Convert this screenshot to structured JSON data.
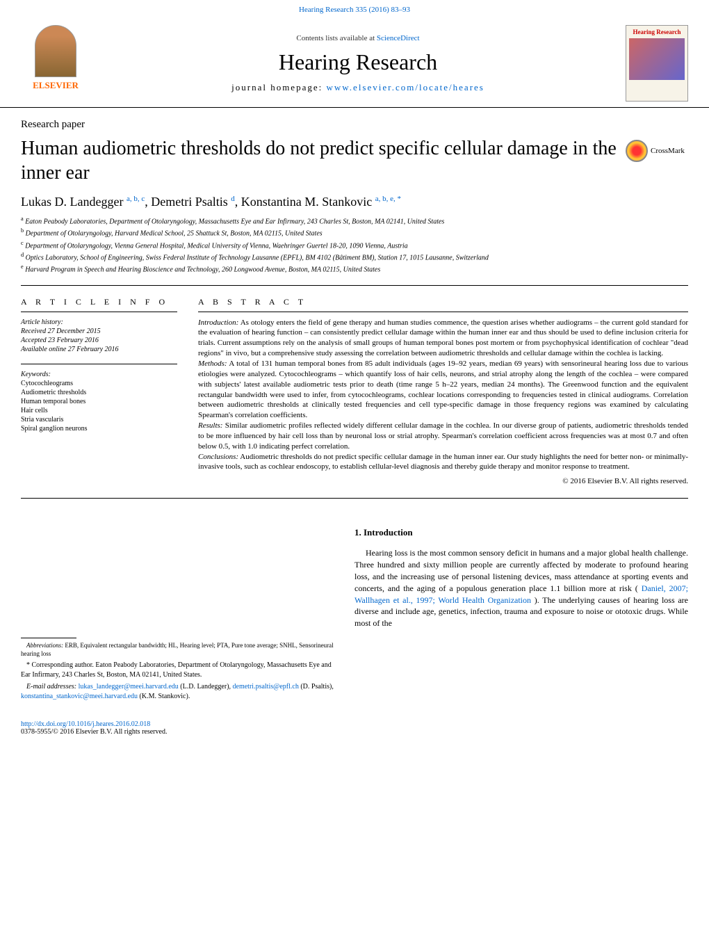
{
  "header": {
    "citation": "Hearing Research 335 (2016) 83–93",
    "contents_prefix": "Contents lists available at ",
    "contents_link": "ScienceDirect",
    "journal_name": "Hearing Research",
    "homepage_prefix": "journal homepage: ",
    "homepage_url": "www.elsevier.com/locate/heares",
    "publisher_name": "ELSEVIER",
    "cover_label": "Hearing Research"
  },
  "article": {
    "type": "Research paper",
    "title": "Human audiometric thresholds do not predict specific cellular damage in the inner ear",
    "crossmark_label": "CrossMark",
    "authors_html": "Lukas D. Landegger ",
    "authors": [
      {
        "name": "Lukas D. Landegger ",
        "sup": "a, b, c"
      },
      {
        "name": ", Demetri Psaltis ",
        "sup": "d"
      },
      {
        "name": ", Konstantina M. Stankovic ",
        "sup": "a, b, e, *"
      }
    ],
    "affiliations": [
      {
        "sup": "a",
        "text": " Eaton Peabody Laboratories, Department of Otolaryngology, Massachusetts Eye and Ear Infirmary, 243 Charles St, Boston, MA 02141, United States"
      },
      {
        "sup": "b",
        "text": " Department of Otolaryngology, Harvard Medical School, 25 Shattuck St, Boston, MA 02115, United States"
      },
      {
        "sup": "c",
        "text": " Department of Otolaryngology, Vienna General Hospital, Medical University of Vienna, Waehringer Guertel 18-20, 1090 Vienna, Austria"
      },
      {
        "sup": "d",
        "text": " Optics Laboratory, School of Engineering, Swiss Federal Institute of Technology Lausanne (EPFL), BM 4102 (Bâtiment BM), Station 17, 1015 Lausanne, Switzerland"
      },
      {
        "sup": "e",
        "text": " Harvard Program in Speech and Hearing Bioscience and Technology, 260 Longwood Avenue, Boston, MA 02115, United States"
      }
    ]
  },
  "info": {
    "heading": "A R T I C L E   I N F O",
    "history_label": "Article history:",
    "history": {
      "received": "Received 27 December 2015",
      "accepted": "Accepted 23 February 2016",
      "online": "Available online 27 February 2016"
    },
    "keywords_label": "Keywords:",
    "keywords": [
      "Cytocochleograms",
      "Audiometric thresholds",
      "Human temporal bones",
      "Hair cells",
      "Stria vascularis",
      "Spiral ganglion neurons"
    ]
  },
  "abstract": {
    "heading": "A B S T R A C T",
    "intro_label": "Introduction:",
    "intro": " As otology enters the field of gene therapy and human studies commence, the question arises whether audiograms – the current gold standard for the evaluation of hearing function – can consistently predict cellular damage within the human inner ear and thus should be used to define inclusion criteria for trials. Current assumptions rely on the analysis of small groups of human temporal bones post mortem or from psychophysical identification of cochlear \"dead regions\" in vivo, but a comprehensive study assessing the correlation between audiometric thresholds and cellular damage within the cochlea is lacking.",
    "methods_label": "Methods:",
    "methods": " A total of 131 human temporal bones from 85 adult individuals (ages 19–92 years, median 69 years) with sensorineural hearing loss due to various etiologies were analyzed. Cytocochleograms – which quantify loss of hair cells, neurons, and strial atrophy along the length of the cochlea – were compared with subjects' latest available audiometric tests prior to death (time range 5 h–22 years, median 24 months). The Greenwood function and the equivalent rectangular bandwidth were used to infer, from cytocochleograms, cochlear locations corresponding to frequencies tested in clinical audiograms. Correlation between audiometric thresholds at clinically tested frequencies and cell type-specific damage in those frequency regions was examined by calculating Spearman's correlation coefficients.",
    "results_label": "Results:",
    "results": " Similar audiometric profiles reflected widely different cellular damage in the cochlea. In our diverse group of patients, audiometric thresholds tended to be more influenced by hair cell loss than by neuronal loss or strial atrophy. Spearman's correlation coefficient across frequencies was at most 0.7 and often below 0.5, with 1.0 indicating perfect correlation.",
    "conclusions_label": "Conclusions:",
    "conclusions": " Audiometric thresholds do not predict specific cellular damage in the human inner ear. Our study highlights the need for better non- or minimally-invasive tools, such as cochlear endoscopy, to establish cellular-level diagnosis and thereby guide therapy and monitor response to treatment.",
    "copyright": "© 2016 Elsevier B.V. All rights reserved."
  },
  "introduction": {
    "heading": "1. Introduction",
    "p1": "Hearing loss is the most common sensory deficit in humans and a major global health challenge. Three hundred and sixty million people are currently affected by moderate to profound hearing loss, and the increasing use of personal listening devices, mass attendance at sporting events and concerts, and the aging of a populous generation place 1.1 billion more at risk (",
    "p1_link": "Daniel, 2007; Wallhagen et al., 1997; World Health Organization",
    "p1_tail": "). The underlying causes of hearing loss are diverse and include age, genetics, infection, trauma and exposure to noise or ototoxic drugs. While most of the"
  },
  "footnotes": {
    "abbrev_label": "Abbreviations:",
    "abbrev_text": " ERB, Equivalent rectangular bandwidth; HL, Hearing level; PTA, Pure tone average; SNHL, Sensorineural hearing loss",
    "corresp_marker": "*",
    "corresp_text": " Corresponding author. Eaton Peabody Laboratories, Department of Otolaryngology, Massachusetts Eye and Ear Infirmary, 243 Charles St, Boston, MA 02141, United States.",
    "email_label": "E-mail addresses: ",
    "emails": [
      {
        "addr": "lukas_landegger@meei.harvard.edu",
        "who": " (L.D. Landegger), "
      },
      {
        "addr": "demetri.psaltis@epfl.ch",
        "who": " (D. Psaltis), "
      },
      {
        "addr": "konstantina_stankovic@meei.harvard.edu",
        "who": " (K.M. Stankovic)."
      }
    ]
  },
  "doi": {
    "url": "http://dx.doi.org/10.1016/j.heares.2016.02.018",
    "issn": "0378-5955/© 2016 Elsevier B.V. All rights reserved."
  },
  "colors": {
    "link": "#0066cc",
    "publisher": "#ff6600",
    "text": "#000000",
    "background": "#ffffff"
  }
}
